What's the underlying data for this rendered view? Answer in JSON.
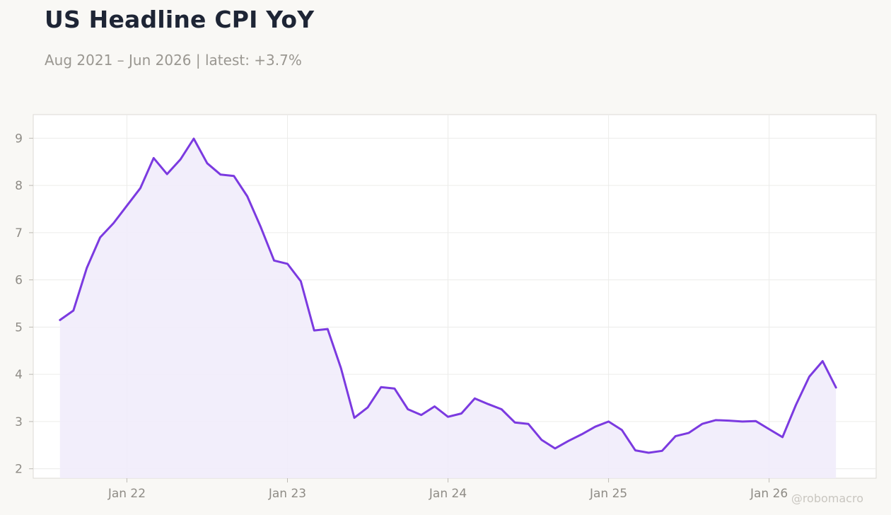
{
  "header": {
    "title": "US Headline CPI YoY",
    "subtitle": "Aug 2021 – Jun 2026 | latest: +3.7%"
  },
  "watermark": "@robomacro",
  "colors": {
    "line": "#7b3ae0",
    "fill": "#f1ecfb",
    "grid": "#ececea",
    "frame": "#dcdad5"
  },
  "chart_data": {
    "type": "area",
    "title": "US Headline CPI YoY",
    "subtitle": "Aug 2021 – Jun 2026 | latest: +3.7%",
    "xlabel": "",
    "ylabel": "",
    "grid": true,
    "legend": "none",
    "xlim": [
      "2021-06",
      "2026-09"
    ],
    "ylim": [
      1.8,
      9.5
    ],
    "yticks": [
      2,
      3,
      4,
      5,
      6,
      7,
      8,
      9
    ],
    "xticks": [
      {
        "date": "2022-01",
        "label": "Jan 22"
      },
      {
        "date": "2023-01",
        "label": "Jan 23"
      },
      {
        "date": "2024-01",
        "label": "Jan 24"
      },
      {
        "date": "2025-01",
        "label": "Jan 25"
      },
      {
        "date": "2026-01",
        "label": "Jan 26"
      }
    ],
    "series": [
      {
        "x": [
          "2021-08",
          "2021-09",
          "2021-10",
          "2021-11",
          "2021-12",
          "2022-01",
          "2022-02",
          "2022-03",
          "2022-04",
          "2022-05",
          "2022-06",
          "2022-07",
          "2022-08",
          "2022-09",
          "2022-10",
          "2022-11",
          "2022-12",
          "2023-01",
          "2023-02",
          "2023-03",
          "2023-04",
          "2023-05",
          "2023-06",
          "2023-07",
          "2023-08",
          "2023-09",
          "2023-10",
          "2023-11",
          "2023-12",
          "2024-01",
          "2024-02",
          "2024-03",
          "2024-04",
          "2024-05",
          "2024-06",
          "2024-07",
          "2024-08",
          "2024-09",
          "2024-10",
          "2024-11",
          "2024-12",
          "2025-01",
          "2025-02",
          "2025-03",
          "2025-04",
          "2025-05",
          "2025-06",
          "2025-07",
          "2025-08",
          "2025-09",
          "2025-10",
          "2025-11",
          "2025-12",
          "2026-01",
          "2026-02",
          "2026-03",
          "2026-04",
          "2026-05",
          "2026-06"
        ],
        "values": [
          5.15,
          5.35,
          6.25,
          6.9,
          7.2,
          7.57,
          7.94,
          8.58,
          8.24,
          8.55,
          8.99,
          8.47,
          8.23,
          8.2,
          7.77,
          7.12,
          6.41,
          6.34,
          5.97,
          4.93,
          4.96,
          4.13,
          3.08,
          3.3,
          3.73,
          3.7,
          3.26,
          3.14,
          3.32,
          3.1,
          3.17,
          3.49,
          3.37,
          3.26,
          2.98,
          2.95,
          2.61,
          2.43,
          2.59,
          2.73,
          2.89,
          3.0,
          2.82,
          2.39,
          2.34,
          2.38,
          2.69,
          2.76,
          2.95,
          3.03,
          3.02,
          3.0,
          3.01,
          2.84,
          2.67,
          3.35,
          3.95,
          4.28,
          3.72
        ]
      }
    ]
  }
}
